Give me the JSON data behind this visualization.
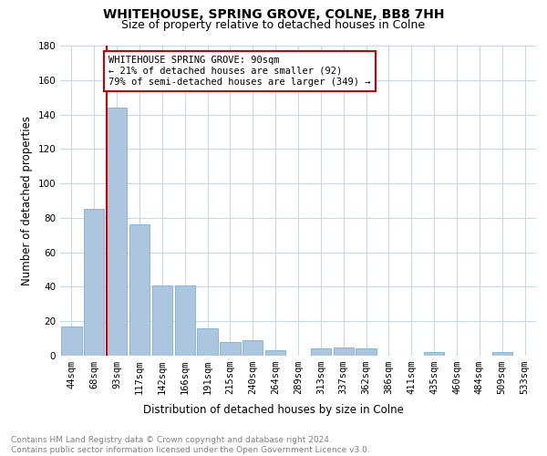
{
  "title": "WHITEHOUSE, SPRING GROVE, COLNE, BB8 7HH",
  "subtitle": "Size of property relative to detached houses in Colne",
  "xlabel": "Distribution of detached houses by size in Colne",
  "ylabel": "Number of detached properties",
  "categories": [
    "44sqm",
    "68sqm",
    "93sqm",
    "117sqm",
    "142sqm",
    "166sqm",
    "191sqm",
    "215sqm",
    "240sqm",
    "264sqm",
    "289sqm",
    "313sqm",
    "337sqm",
    "362sqm",
    "386sqm",
    "411sqm",
    "435sqm",
    "460sqm",
    "484sqm",
    "509sqm",
    "533sqm"
  ],
  "values": [
    17,
    85,
    144,
    76,
    41,
    41,
    16,
    8,
    9,
    3,
    0,
    4,
    5,
    4,
    0,
    0,
    2,
    0,
    0,
    2,
    0
  ],
  "bar_color": "#adc6e0",
  "bar_edge_color": "#7aafd4",
  "vline_x_index": 2,
  "vline_color": "#cc0000",
  "annotation_text": "WHITEHOUSE SPRING GROVE: 90sqm\n← 21% of detached houses are smaller (92)\n79% of semi-detached houses are larger (349) →",
  "annotation_box_color": "white",
  "annotation_box_edge_color": "#cc0000",
  "ylim": [
    0,
    180
  ],
  "yticks": [
    0,
    20,
    40,
    60,
    80,
    100,
    120,
    140,
    160,
    180
  ],
  "grid_color": "#c8d8e8",
  "footer_text": "Contains HM Land Registry data © Crown copyright and database right 2024.\nContains public sector information licensed under the Open Government Licence v3.0.",
  "title_fontsize": 10,
  "subtitle_fontsize": 9,
  "xlabel_fontsize": 8.5,
  "ylabel_fontsize": 8.5,
  "tick_fontsize": 7.5,
  "annotation_fontsize": 7.5,
  "footer_fontsize": 6.5
}
